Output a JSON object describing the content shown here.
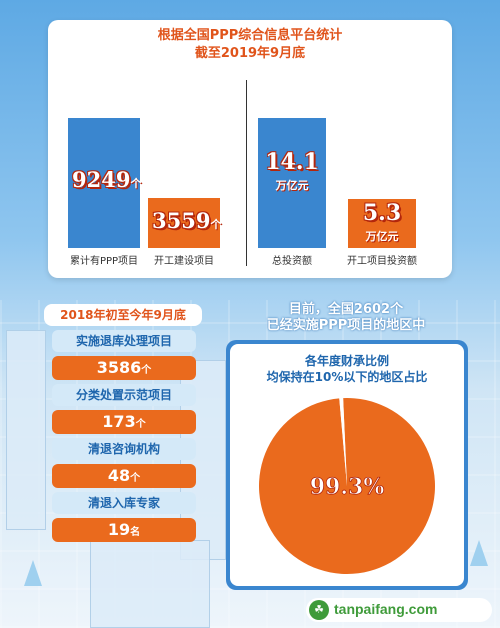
{
  "header": {
    "title": "根据全国PPP综合信息平台统计",
    "subtitle": "截至2019年9月底"
  },
  "chart_data": [
    {
      "type": "bar",
      "categories": [
        "累计有PPP项目",
        "开工建设项目"
      ],
      "values": [
        9249,
        3559
      ],
      "unit": "个",
      "colors": [
        "#3a86cf",
        "#ea6a1d"
      ]
    },
    {
      "type": "bar",
      "categories": [
        "总投资额",
        "开工项目投资额"
      ],
      "values": [
        14.1,
        5.3
      ],
      "unit": "万亿元",
      "colors": [
        "#3a86cf",
        "#ea6a1d"
      ]
    },
    {
      "type": "pie",
      "title": "各年度财承比例均保持在10%以下的地区占比",
      "values": [
        99.3,
        0.7
      ],
      "display": "99.3%",
      "colors": [
        "#ea6a1d",
        "#ffffff"
      ]
    }
  ],
  "stats": {
    "title": "2018年初至今年9月底",
    "items": [
      {
        "label": "实施退库处理项目",
        "value": "3586",
        "unit": "个"
      },
      {
        "label": "分类处置示范项目",
        "value": "173",
        "unit": "个"
      },
      {
        "label": "清退咨询机构",
        "value": "48",
        "unit": "个"
      },
      {
        "label": "清退入库专家",
        "value": "19",
        "unit": "名"
      }
    ]
  },
  "pie_section": {
    "title_line1": "目前，全国2602个",
    "title_line2": "已经实施PPP项目的地区中",
    "subtitle_line1": "各年度财承比例",
    "subtitle_line2": "均保持在10%以下的地区占比"
  },
  "watermark": {
    "text": "tanpaifang.com",
    "icon": "leaf-icon"
  }
}
